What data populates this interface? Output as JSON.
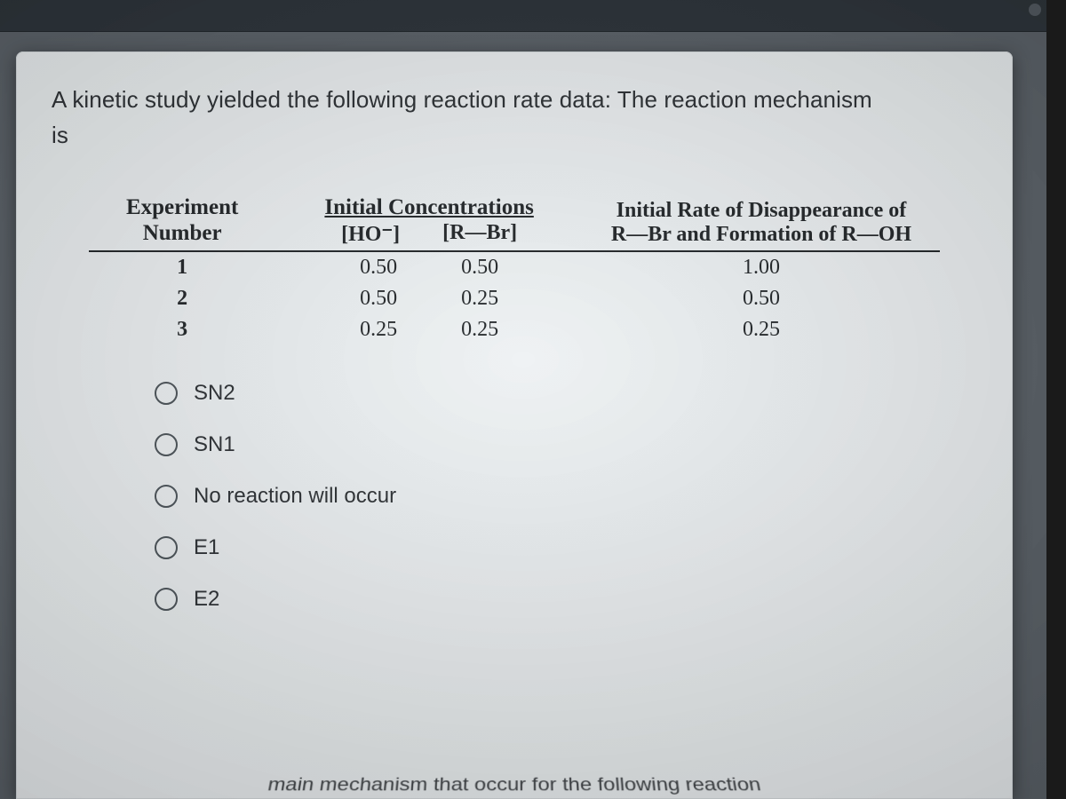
{
  "question": {
    "line1": "A kinetic study yielded the following reaction rate data: The reaction mechanism",
    "line2": "is"
  },
  "table": {
    "headers": {
      "experiment_l1": "Experiment",
      "experiment_l2": "Number",
      "conc_title": "Initial Concentrations",
      "conc_sub1": "[HO⁻]",
      "conc_sub2": "[R—Br]",
      "rate_l1": "Initial Rate of Disappearance of",
      "rate_l2": "R—Br and Formation of R—OH"
    },
    "rows": [
      {
        "n": "1",
        "ho": "0.50",
        "rbr": "0.50",
        "rate": "1.00"
      },
      {
        "n": "2",
        "ho": "0.50",
        "rbr": "0.25",
        "rate": "0.50"
      },
      {
        "n": "3",
        "ho": "0.25",
        "rbr": "0.25",
        "rate": "0.25"
      }
    ]
  },
  "options": [
    {
      "id": "sn2",
      "label": "SN2"
    },
    {
      "id": "sn1",
      "label": "SN1"
    },
    {
      "id": "none",
      "label": "No reaction will occur"
    },
    {
      "id": "e1",
      "label": "E1"
    },
    {
      "id": "e2",
      "label": "E2"
    }
  ],
  "next_question_partial": "main mechanism that occur for the following reaction",
  "colors": {
    "page_bg": "#5a6168",
    "card_bg": "#eef2f4",
    "text": "#2b2f33",
    "table_text": "#1f2326",
    "rule": "#1f2326",
    "radio_border": "#4a5258"
  }
}
